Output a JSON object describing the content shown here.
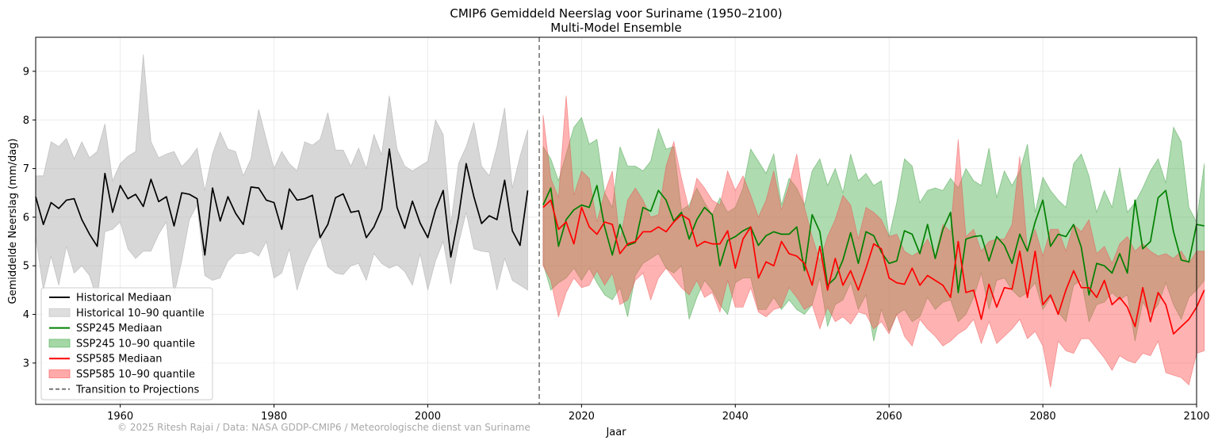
{
  "chart_data": {
    "type": "line",
    "title": "CMIP6 Gemiddeld Neerslag voor Suriname (1950–2100)",
    "subtitle": "Multi-Model Ensemble",
    "xlabel": "Jaar",
    "ylabel": "Gemiddelde Neerslag (mm/dag)",
    "xlim": [
      1949,
      2100
    ],
    "ylim": [
      2.15,
      9.7
    ],
    "x_ticks": [
      1960,
      1980,
      2000,
      2020,
      2040,
      2060,
      2080,
      2100
    ],
    "y_ticks": [
      3,
      4,
      5,
      6,
      7,
      8,
      9
    ],
    "grid": true,
    "legend_position": "lower-left",
    "transition_year": 2014.5,
    "credit": "© 2025 Ritesh Rajai / Data: NASA GDDP-CMIP6 / Meteorologische dienst van Suriname",
    "legend": [
      {
        "label": "Historical Mediaan",
        "kind": "line",
        "color": "#000000"
      },
      {
        "label": "Historical 10–90 quantile",
        "kind": "band",
        "color": "#bdbdbd"
      },
      {
        "label": "SSP245 Mediaan",
        "kind": "line",
        "color": "#008000"
      },
      {
        "label": "SSP245 10–90 quantile",
        "kind": "band",
        "color": "#4caf50"
      },
      {
        "label": "SSP585 Mediaan",
        "kind": "line",
        "color": "#ff0000"
      },
      {
        "label": "SSP585 10–90 quantile",
        "kind": "band",
        "color": "#ff5555"
      },
      {
        "label": "Transition to Projections",
        "kind": "dashed",
        "color": "#777777"
      }
    ],
    "series": [
      {
        "name": "Historical",
        "x_start": 1949,
        "median": [
          6.42,
          5.85,
          6.3,
          6.18,
          6.35,
          6.38,
          5.95,
          5.65,
          5.4,
          6.9,
          6.1,
          6.65,
          6.38,
          6.47,
          6.22,
          6.78,
          6.32,
          6.42,
          5.82,
          6.5,
          6.47,
          6.38,
          5.22,
          6.6,
          5.92,
          6.42,
          6.08,
          5.85,
          6.62,
          6.6,
          6.35,
          6.3,
          5.75,
          6.58,
          6.35,
          6.38,
          6.45,
          5.58,
          5.85,
          6.4,
          6.48,
          6.1,
          6.13,
          5.58,
          5.8,
          6.17,
          7.4,
          6.2,
          5.77,
          6.33,
          5.88,
          5.58,
          6.15,
          6.55,
          5.18,
          6.0,
          7.1,
          6.42,
          5.87,
          6.03,
          5.95,
          6.76,
          5.72,
          5.42,
          6.55
        ],
        "q10": [
          5.6,
          4.5,
          5.2,
          4.6,
          5.4,
          4.85,
          5.0,
          4.8,
          4.3,
          5.7,
          5.75,
          5.9,
          5.35,
          5.15,
          5.3,
          5.3,
          5.65,
          5.9,
          4.4,
          5.1,
          5.95,
          6.25,
          4.8,
          4.7,
          4.75,
          5.1,
          5.25,
          5.25,
          5.3,
          5.2,
          5.5,
          4.75,
          4.85,
          5.35,
          4.5,
          5.0,
          5.35,
          5.6,
          4.98,
          4.85,
          4.82,
          5.0,
          5.05,
          4.7,
          5.25,
          5.05,
          4.95,
          5.02,
          4.88,
          4.6,
          5.25,
          4.5,
          5.1,
          5.5,
          4.62,
          5.45,
          6.1,
          5.35,
          5.3,
          5.28,
          4.5,
          5.15,
          4.7,
          4.6,
          4.5
        ],
        "q90": [
          6.85,
          6.85,
          7.55,
          7.45,
          7.62,
          7.2,
          7.55,
          7.22,
          7.35,
          7.92,
          6.75,
          7.1,
          7.25,
          7.35,
          9.35,
          7.55,
          7.22,
          7.3,
          7.35,
          7.04,
          7.2,
          7.42,
          6.55,
          7.3,
          7.75,
          7.4,
          7.35,
          6.85,
          7.2,
          8.22,
          7.6,
          7.0,
          7.35,
          7.1,
          6.95,
          7.55,
          7.48,
          7.6,
          8.15,
          7.38,
          7.38,
          7.05,
          7.42,
          7.0,
          7.7,
          7.28,
          8.5,
          7.4,
          7.05,
          6.95,
          7.05,
          7.15,
          8.0,
          7.7,
          5.85,
          7.1,
          7.45,
          7.95,
          7.05,
          6.85,
          7.45,
          8.25,
          6.6,
          7.25,
          7.8
        ]
      },
      {
        "name": "SSP245",
        "x_start": 2015,
        "median": [
          6.25,
          6.6,
          5.4,
          5.95,
          6.15,
          6.25,
          6.2,
          6.65,
          5.8,
          5.22,
          5.85,
          5.42,
          5.48,
          6.2,
          6.12,
          6.55,
          6.35,
          5.92,
          6.1,
          5.55,
          5.95,
          6.2,
          6.05,
          5.0,
          5.52,
          5.6,
          5.72,
          5.8,
          5.42,
          5.62,
          5.7,
          5.65,
          5.65,
          5.8,
          4.9,
          6.05,
          5.7,
          4.6,
          4.75,
          5.12,
          5.68,
          5.05,
          5.7,
          5.62,
          5.28,
          5.05,
          5.1,
          5.72,
          5.65,
          5.25,
          5.85,
          5.15,
          5.75,
          6.1,
          4.45,
          5.55,
          5.6,
          5.62,
          5.1,
          5.6,
          5.42,
          5.05,
          5.65,
          5.3,
          5.9,
          6.35,
          5.4,
          5.65,
          5.6,
          5.85,
          5.38,
          4.4,
          5.05,
          5.0,
          4.85,
          5.25,
          4.85,
          6.35,
          5.35,
          5.5,
          6.4,
          6.55,
          5.7,
          5.12,
          5.08,
          5.85,
          5.82
        ],
        "q10": [
          5.05,
          4.5,
          4.65,
          4.75,
          4.95,
          4.7,
          4.95,
          4.65,
          4.4,
          4.3,
          4.55,
          3.95,
          4.8,
          5.05,
          5.15,
          5.25,
          4.95,
          4.85,
          5.0,
          3.9,
          4.35,
          4.7,
          4.5,
          4.2,
          4.0,
          4.65,
          4.75,
          4.75,
          4.1,
          4.1,
          4.35,
          4.1,
          4.3,
          4.1,
          4.0,
          4.2,
          4.75,
          3.75,
          4.2,
          4.3,
          4.65,
          4.1,
          4.4,
          3.45,
          4.1,
          3.65,
          4.0,
          4.1,
          3.85,
          3.95,
          4.35,
          4.1,
          4.25,
          4.3,
          3.85,
          4.0,
          4.35,
          4.85,
          4.1,
          4.7,
          4.75,
          4.5,
          4.35,
          4.45,
          4.65,
          4.1,
          4.35,
          4.05,
          3.85,
          4.6,
          4.7,
          3.85,
          4.2,
          4.25,
          4.45,
          4.3,
          4.4,
          3.45,
          4.25,
          4.0,
          4.2,
          4.65,
          4.2,
          3.9,
          4.35,
          4.5,
          4.7
        ],
        "q90": [
          7.45,
          7.2,
          6.75,
          7.3,
          7.85,
          8.05,
          7.5,
          7.6,
          6.5,
          6.2,
          7.45,
          7.05,
          7.05,
          6.95,
          7.15,
          7.82,
          7.4,
          7.45,
          6.15,
          6.25,
          6.6,
          6.3,
          6.05,
          6.4,
          6.1,
          6.2,
          6.6,
          7.4,
          7.15,
          6.9,
          7.3,
          6.25,
          6.8,
          6.6,
          6.25,
          6.95,
          7.2,
          6.65,
          7.0,
          6.5,
          7.3,
          6.75,
          6.9,
          6.65,
          6.75,
          5.6,
          6.3,
          7.2,
          7.05,
          6.3,
          6.55,
          6.6,
          6.55,
          6.8,
          6.6,
          7.0,
          6.75,
          6.65,
          7.42,
          6.4,
          6.95,
          6.65,
          6.95,
          7.5,
          6.1,
          6.82,
          6.55,
          6.35,
          6.2,
          7.1,
          7.3,
          6.85,
          6.1,
          6.55,
          6.2,
          7.02,
          6.1,
          6.3,
          6.6,
          6.95,
          7.2,
          6.7,
          7.85,
          7.55,
          6.2,
          5.9,
          7.1
        ]
      },
      {
        "name": "SSP585",
        "x_start": 2015,
        "median": [
          6.2,
          6.35,
          5.75,
          5.9,
          5.45,
          6.2,
          5.8,
          5.65,
          5.9,
          5.85,
          5.25,
          5.45,
          5.5,
          5.7,
          5.7,
          5.8,
          5.7,
          5.9,
          6.05,
          5.95,
          5.4,
          5.5,
          5.45,
          5.45,
          5.72,
          4.95,
          5.55,
          5.8,
          4.75,
          5.08,
          5.0,
          5.5,
          5.25,
          5.2,
          5.05,
          4.6,
          5.4,
          4.5,
          5.15,
          4.6,
          4.9,
          4.5,
          4.95,
          5.45,
          5.35,
          4.75,
          4.65,
          4.62,
          4.95,
          4.6,
          4.8,
          4.7,
          4.6,
          4.35,
          5.5,
          4.45,
          4.5,
          3.9,
          4.62,
          4.15,
          4.55,
          4.52,
          5.3,
          4.35,
          5.3,
          4.2,
          4.4,
          4.0,
          4.5,
          4.9,
          4.55,
          4.55,
          4.35,
          4.7,
          4.2,
          4.35,
          4.15,
          3.75,
          4.55,
          3.85,
          4.45,
          4.2,
          3.6,
          3.75,
          3.9,
          4.15,
          4.5
        ],
        "q10": [
          5.0,
          4.7,
          3.95,
          4.45,
          4.75,
          4.55,
          4.6,
          4.9,
          4.6,
          4.85,
          4.2,
          4.3,
          4.7,
          4.85,
          4.3,
          4.75,
          4.95,
          4.75,
          4.55,
          4.4,
          4.7,
          4.35,
          4.45,
          4.05,
          4.7,
          4.15,
          4.15,
          4.55,
          4.05,
          3.95,
          4.1,
          4.15,
          4.55,
          4.35,
          4.1,
          4.2,
          3.7,
          4.15,
          3.85,
          3.95,
          3.8,
          4.05,
          4.0,
          3.7,
          3.85,
          3.6,
          4.0,
          3.55,
          3.35,
          3.9,
          3.7,
          3.55,
          3.35,
          3.45,
          3.6,
          3.7,
          3.9,
          3.4,
          3.85,
          3.4,
          3.55,
          3.7,
          3.9,
          3.5,
          3.65,
          3.35,
          2.5,
          3.45,
          3.25,
          3.2,
          3.5,
          3.5,
          3.3,
          3.1,
          2.85,
          3.15,
          3.05,
          3.0,
          3.2,
          3.15,
          3.45,
          2.8,
          2.75,
          2.7,
          2.55,
          3.2,
          3.25
        ],
        "q90": [
          8.1,
          6.8,
          6.4,
          8.5,
          6.45,
          6.95,
          6.8,
          5.9,
          6.5,
          6.95,
          5.5,
          6.35,
          6.6,
          6.35,
          6.0,
          6.05,
          7.05,
          7.55,
          6.8,
          6.15,
          6.8,
          6.6,
          6.35,
          6.25,
          6.95,
          6.55,
          6.85,
          6.45,
          6.0,
          6.35,
          6.95,
          6.15,
          6.65,
          7.3,
          6.2,
          5.6,
          5.1,
          5.6,
          5.95,
          6.45,
          6.25,
          5.55,
          6.2,
          6.1,
          5.95,
          5.6,
          5.65,
          5.3,
          5.2,
          5.3,
          5.55,
          5.2,
          5.85,
          5.7,
          7.6,
          5.6,
          5.75,
          5.3,
          5.5,
          5.55,
          5.55,
          5.85,
          7.25,
          5.3,
          5.75,
          5.2,
          5.75,
          5.75,
          5.3,
          5.85,
          5.7,
          5.95,
          5.25,
          5.4,
          5.05,
          5.45,
          5.6,
          5.3,
          5.45,
          5.3,
          5.2,
          5.25,
          5.15,
          5.3,
          5.05,
          5.3,
          5.3
        ]
      }
    ]
  }
}
